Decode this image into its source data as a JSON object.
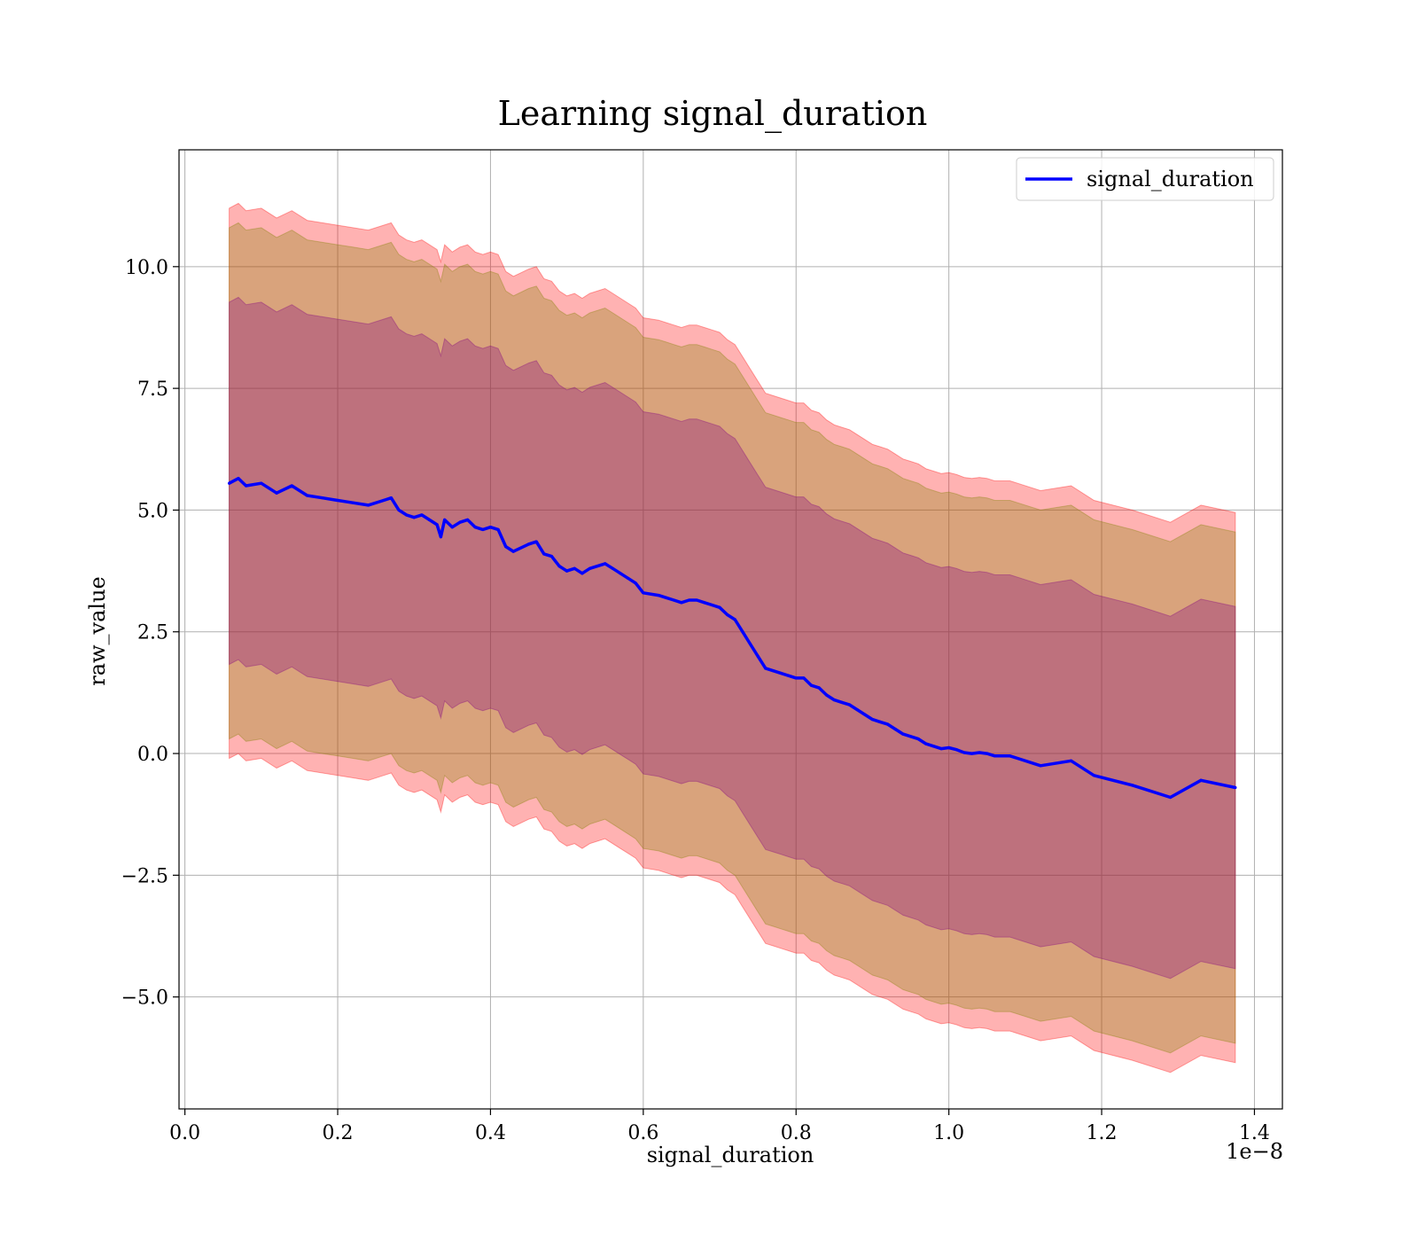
{
  "chart_data": {
    "type": "line",
    "title": "Learning signal_duration",
    "xlabel": "signal_duration",
    "ylabel": "raw_value",
    "x_offset_label": "1e−8",
    "xlim": [
      -0.0077,
      1.4366
    ],
    "ylim": [
      -7.3,
      12.4
    ],
    "x_ticks": [
      0.0,
      0.2,
      0.4,
      0.6,
      0.8,
      1.0,
      1.2,
      1.4
    ],
    "x_tick_labels": [
      "0.0",
      "0.2",
      "0.4",
      "0.6",
      "0.8",
      "1.0",
      "1.2",
      "1.4"
    ],
    "y_ticks": [
      -5.0,
      -2.5,
      0.0,
      2.5,
      5.0,
      7.5,
      10.0
    ],
    "y_tick_labels": [
      "−5.0",
      "−2.5",
      "0.0",
      "2.5",
      "5.0",
      "7.5",
      "10.0"
    ],
    "grid": true,
    "legend_position": "top-right",
    "series": [
      {
        "name": "signal_duration",
        "color": "#0000ff",
        "x": [
          0.058,
          0.07,
          0.08,
          0.1,
          0.12,
          0.14,
          0.16,
          0.18,
          0.2,
          0.22,
          0.24,
          0.26,
          0.27,
          0.28,
          0.29,
          0.3,
          0.31,
          0.32,
          0.33,
          0.335,
          0.34,
          0.35,
          0.36,
          0.37,
          0.38,
          0.39,
          0.4,
          0.41,
          0.42,
          0.43,
          0.45,
          0.46,
          0.47,
          0.48,
          0.49,
          0.5,
          0.51,
          0.52,
          0.53,
          0.55,
          0.56,
          0.57,
          0.58,
          0.59,
          0.6,
          0.62,
          0.63,
          0.64,
          0.65,
          0.66,
          0.67,
          0.68,
          0.69,
          0.7,
          0.71,
          0.72,
          0.73,
          0.74,
          0.75,
          0.76,
          0.77,
          0.78,
          0.79,
          0.8,
          0.81,
          0.82,
          0.83,
          0.84,
          0.85,
          0.86,
          0.87,
          0.88,
          0.89,
          0.9,
          0.91,
          0.92,
          0.93,
          0.94,
          0.95,
          0.96,
          0.97,
          0.98,
          0.99,
          1.0,
          1.01,
          1.02,
          1.03,
          1.04,
          1.05,
          1.06,
          1.07,
          1.08,
          1.09,
          1.12,
          1.16,
          1.19,
          1.24,
          1.29,
          1.33,
          1.375
        ],
        "values": [
          5.55,
          5.65,
          5.5,
          5.55,
          5.35,
          5.5,
          5.3,
          5.25,
          5.2,
          5.15,
          5.1,
          5.2,
          5.25,
          5.0,
          4.9,
          4.85,
          4.9,
          4.8,
          4.7,
          4.45,
          4.8,
          4.65,
          4.75,
          4.8,
          4.65,
          4.6,
          4.65,
          4.6,
          4.25,
          4.15,
          4.3,
          4.35,
          4.1,
          4.05,
          3.85,
          3.75,
          3.8,
          3.7,
          3.8,
          3.9,
          3.8,
          3.7,
          3.6,
          3.5,
          3.3,
          3.25,
          3.2,
          3.15,
          3.1,
          3.15,
          3.15,
          3.1,
          3.05,
          3.0,
          2.85,
          2.75,
          2.5,
          2.25,
          2.0,
          1.75,
          1.7,
          1.65,
          1.6,
          1.55,
          1.55,
          1.4,
          1.35,
          1.2,
          1.1,
          1.05,
          1.0,
          0.9,
          0.8,
          0.7,
          0.65,
          0.6,
          0.5,
          0.4,
          0.35,
          0.3,
          0.2,
          0.15,
          0.1,
          0.12,
          0.08,
          0.02,
          0.0,
          0.02,
          0.0,
          -0.05,
          -0.05,
          -0.05,
          -0.1,
          -0.25,
          -0.15,
          -0.45,
          -0.65,
          -0.9,
          -0.55,
          -0.7
        ]
      }
    ],
    "bands": [
      {
        "color": "#ff0000",
        "opacity": 0.3,
        "offset": 5.65
      },
      {
        "color": "#808000",
        "opacity": 0.3,
        "offset": 5.25
      },
      {
        "color": "#800080",
        "opacity": 0.3,
        "offset": 3.72
      }
    ]
  }
}
